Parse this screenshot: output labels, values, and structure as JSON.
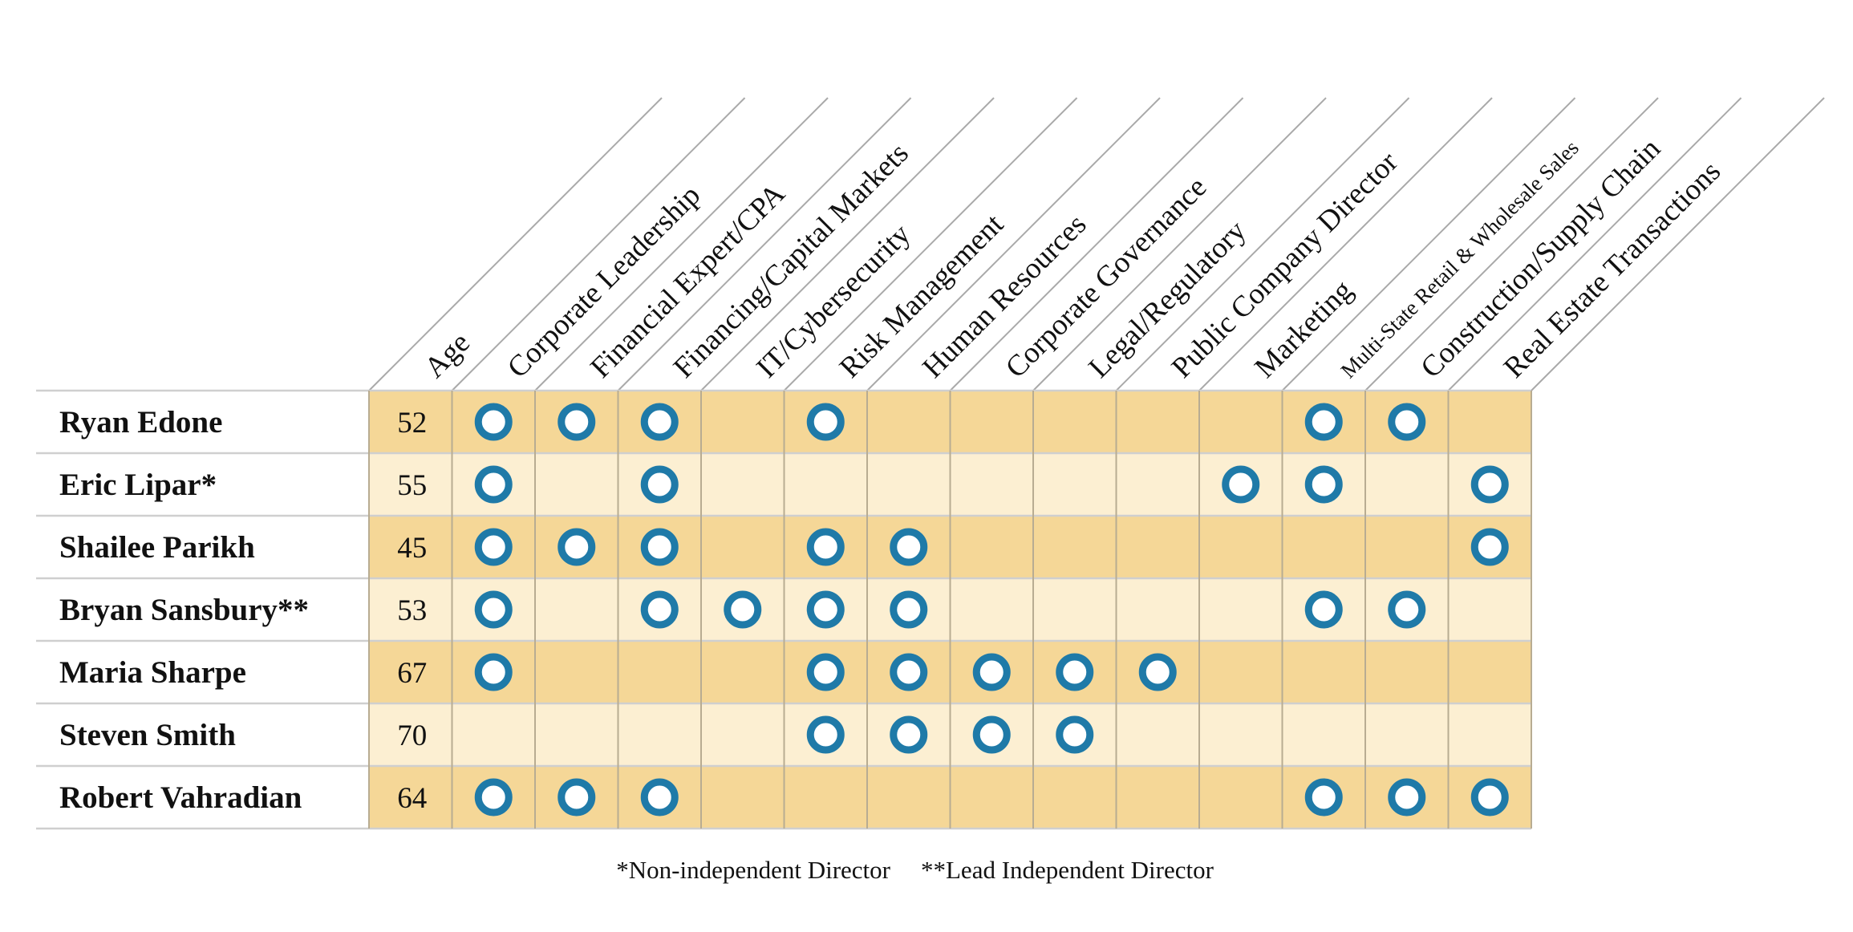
{
  "columns": [
    "Age",
    "Corporate Leadership",
    "Financial Expert/CPA",
    "Financing/Capital Markets",
    "IT/Cybersecurity",
    "Risk Management",
    "Human Resources",
    "Corporate Governance",
    "Legal/Regulatory",
    "Public Company Director",
    "Marketing",
    "Multi-State Retail & Wholesale Sales",
    "Construction/Supply Chain",
    "Real Estate Transactions"
  ],
  "directors": [
    {
      "name": "Ryan Edone",
      "age": "52",
      "skills": [
        1,
        1,
        1,
        0,
        1,
        0,
        0,
        0,
        0,
        0,
        1,
        1,
        0
      ]
    },
    {
      "name": "Eric Lipar*",
      "age": "55",
      "skills": [
        1,
        0,
        1,
        0,
        0,
        0,
        0,
        0,
        0,
        1,
        1,
        0,
        1
      ]
    },
    {
      "name": "Shailee Parikh",
      "age": "45",
      "skills": [
        1,
        1,
        1,
        0,
        1,
        1,
        0,
        0,
        0,
        0,
        0,
        0,
        1
      ]
    },
    {
      "name": "Bryan Sansbury**",
      "age": "53",
      "skills": [
        1,
        0,
        1,
        1,
        1,
        1,
        0,
        0,
        0,
        0,
        1,
        1,
        0
      ]
    },
    {
      "name": "Maria Sharpe",
      "age": "67",
      "skills": [
        1,
        0,
        0,
        0,
        1,
        1,
        1,
        1,
        1,
        0,
        0,
        0,
        0
      ]
    },
    {
      "name": "Steven Smith",
      "age": "70",
      "skills": [
        0,
        0,
        0,
        0,
        1,
        1,
        1,
        1,
        0,
        0,
        0,
        0,
        0
      ]
    },
    {
      "name": "Robert Vahradian",
      "age": "64",
      "skills": [
        1,
        1,
        1,
        0,
        0,
        0,
        0,
        0,
        0,
        0,
        1,
        1,
        1
      ]
    }
  ],
  "footnotes": {
    "non_independent": "*Non-independent Director",
    "lead_independent": "**Lead Independent Director"
  },
  "colors": {
    "row_dark": "#f5d797",
    "row_light": "#fcefd2",
    "marker_ring": "#1f7aa8",
    "marker_fill": "#ffffff"
  }
}
